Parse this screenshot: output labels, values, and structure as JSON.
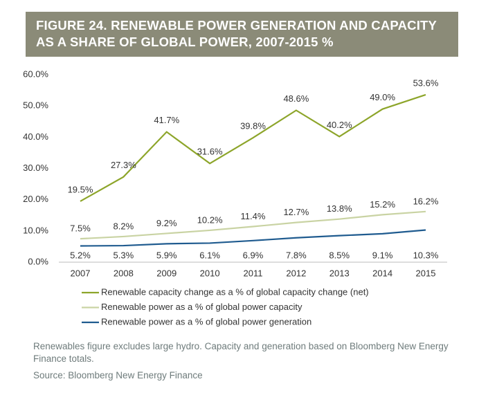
{
  "chart_data": {
    "type": "line",
    "title": "FIGURE 24. RENEWABLE POWER GENERATION AND CAPACITY AS A SHARE OF GLOBAL POWER, 2007-2015 %",
    "categories": [
      "2007",
      "2008",
      "2009",
      "2010",
      "2011",
      "2012",
      "2013",
      "2014",
      "2015"
    ],
    "series": [
      {
        "name": "Renewable capacity change as a % of global capacity change (net)",
        "color": "#8da52a",
        "values": [
          19.5,
          27.3,
          41.7,
          31.6,
          39.8,
          48.6,
          40.2,
          49.0,
          53.6
        ],
        "value_labels": [
          "19.5%",
          "27.3%",
          "41.7%",
          "31.6%",
          "39.8%",
          "48.6%",
          "40.2%",
          "49.0%",
          "53.6%"
        ]
      },
      {
        "name": "Renewable power as a % of global power capacity",
        "color": "#c9d3a3",
        "values": [
          7.5,
          8.2,
          9.2,
          10.2,
          11.4,
          12.7,
          13.8,
          15.2,
          16.2
        ],
        "value_labels": [
          "7.5%",
          "8.2%",
          "9.2%",
          "10.2%",
          "11.4%",
          "12.7%",
          "13.8%",
          "15.2%",
          "16.2%"
        ]
      },
      {
        "name": "Renewable power as a % of global power generation",
        "color": "#1f5b8f",
        "values": [
          5.2,
          5.3,
          5.9,
          6.1,
          6.9,
          7.8,
          8.5,
          9.1,
          10.3
        ],
        "value_labels": [
          "5.2%",
          "5.3%",
          "5.9%",
          "6.1%",
          "6.9%",
          "7.8%",
          "8.5%",
          "9.1%",
          "10.3%"
        ]
      }
    ],
    "ylim": [
      0,
      60
    ],
    "yticks": [
      {
        "value": 0,
        "label": "0.0%"
      },
      {
        "value": 10,
        "label": "10.0%"
      },
      {
        "value": 20,
        "label": "20.0%"
      },
      {
        "value": 30,
        "label": "30.0%"
      },
      {
        "value": 40,
        "label": "40.0%"
      },
      {
        "value": 50,
        "label": "50.0%"
      },
      {
        "value": 60,
        "label": "60.0%"
      }
    ],
    "grid": false,
    "notes": [
      "Renewables figure excludes large hydro. Capacity and generation based on Bloomberg New Energy Finance totals.",
      "Source: Bloomberg New Energy Finance"
    ]
  }
}
